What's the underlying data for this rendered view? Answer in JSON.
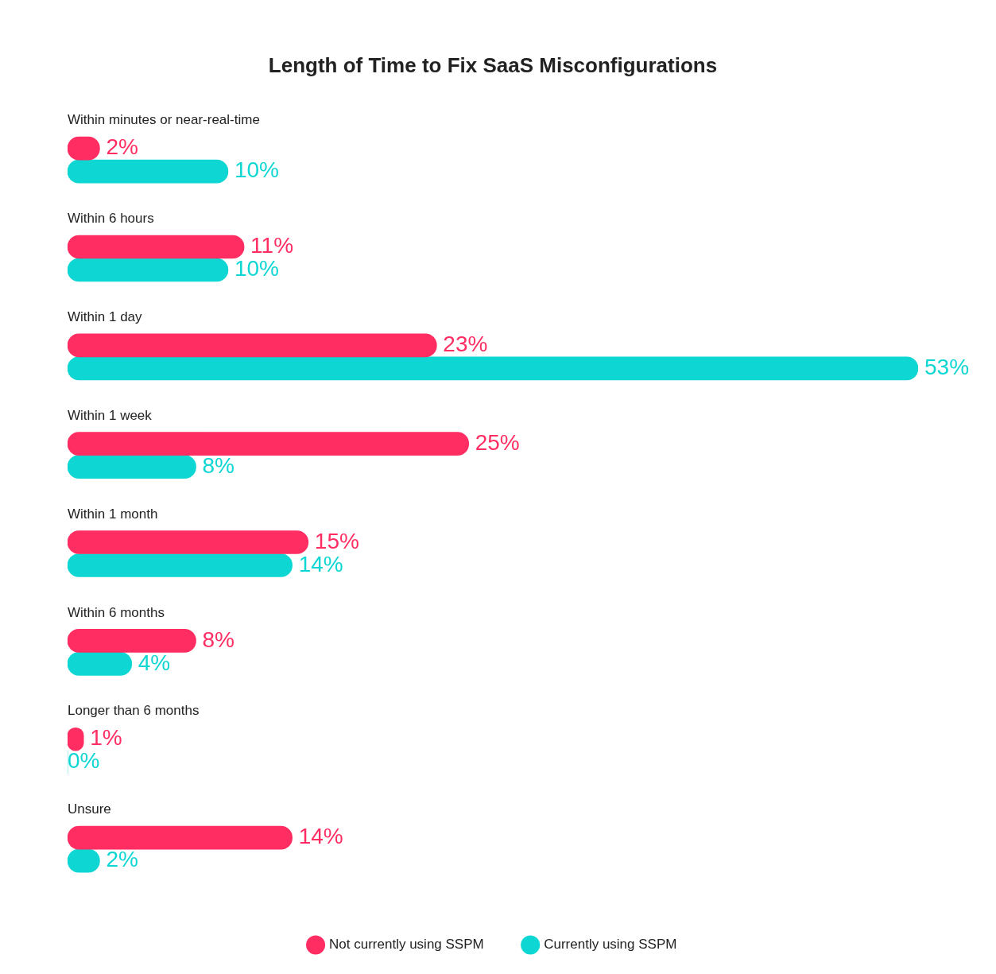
{
  "chart_data": {
    "type": "bar",
    "orientation": "horizontal",
    "title": "Length of Time to Fix SaaS Misconfigurations",
    "categories": [
      "Within minutes or near-real-time",
      "Within 6 hours",
      "Within 1 day",
      "Within 1 week",
      "Within 1 month",
      "Within 6 months",
      "Longer than 6 months",
      "Unsure"
    ],
    "series": [
      {
        "name": "Not currently using SSPM",
        "color": "#ff2d62",
        "values": [
          2,
          11,
          23,
          25,
          15,
          8,
          1,
          14
        ],
        "value_labels": [
          "2%",
          "11%",
          "23%",
          "25%",
          "15%",
          "8%",
          "1%",
          "14%"
        ]
      },
      {
        "name": "Currently using SSPM",
        "color": "#0dd6d3",
        "values": [
          10,
          10,
          53,
          8,
          14,
          4,
          0,
          2
        ],
        "value_labels": [
          "10%",
          "10%",
          "53%",
          "8%",
          "14%",
          "4%",
          "0%",
          "2%"
        ]
      }
    ],
    "legend": "bottom"
  }
}
